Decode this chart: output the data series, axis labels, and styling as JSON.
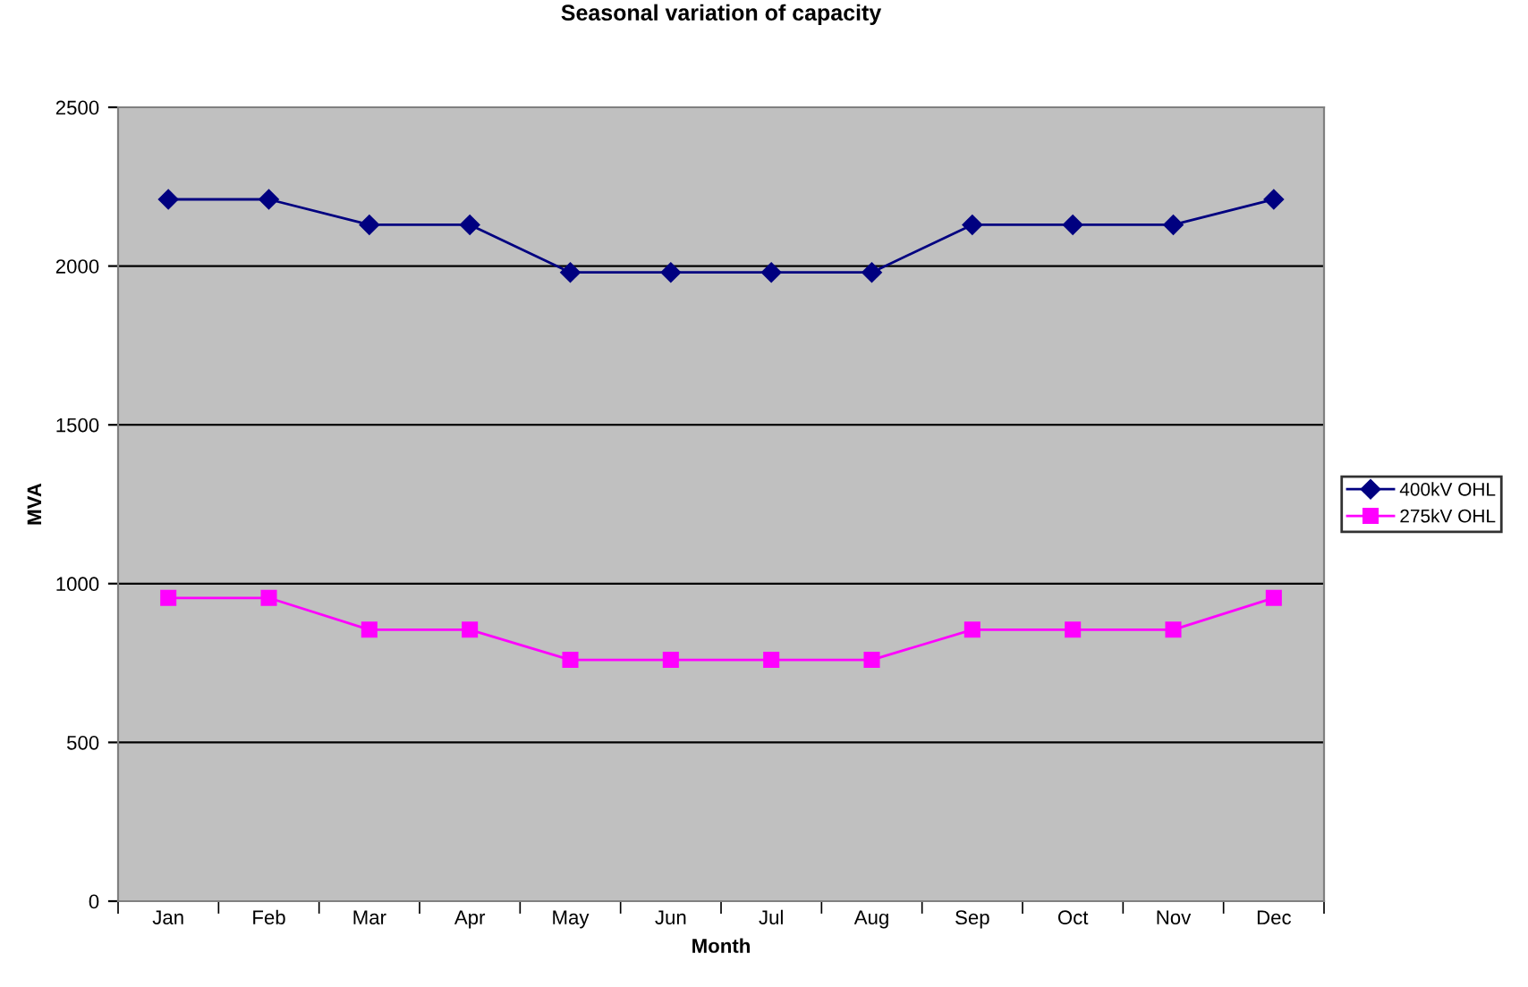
{
  "chart_data": {
    "type": "line",
    "title": "Seasonal variation of capacity",
    "xlabel": "Month",
    "ylabel": "MVA",
    "categories": [
      "Jan",
      "Feb",
      "Mar",
      "Apr",
      "May",
      "Jun",
      "Jul",
      "Aug",
      "Sep",
      "Oct",
      "Nov",
      "Dec"
    ],
    "series": [
      {
        "name": "400kV OHL",
        "color": "#000080",
        "marker": "diamond",
        "values": [
          2210,
          2210,
          2130,
          2130,
          1980,
          1980,
          1980,
          1980,
          2130,
          2130,
          2130,
          2210
        ]
      },
      {
        "name": "275kV OHL",
        "color": "#ff00ff",
        "marker": "square",
        "values": [
          955,
          955,
          855,
          855,
          760,
          760,
          760,
          760,
          855,
          855,
          855,
          955
        ]
      }
    ],
    "ylim": [
      0,
      2500
    ],
    "yticks": [
      0,
      500,
      1000,
      1500,
      2000,
      2500
    ],
    "grid": "y",
    "legend": "right"
  }
}
